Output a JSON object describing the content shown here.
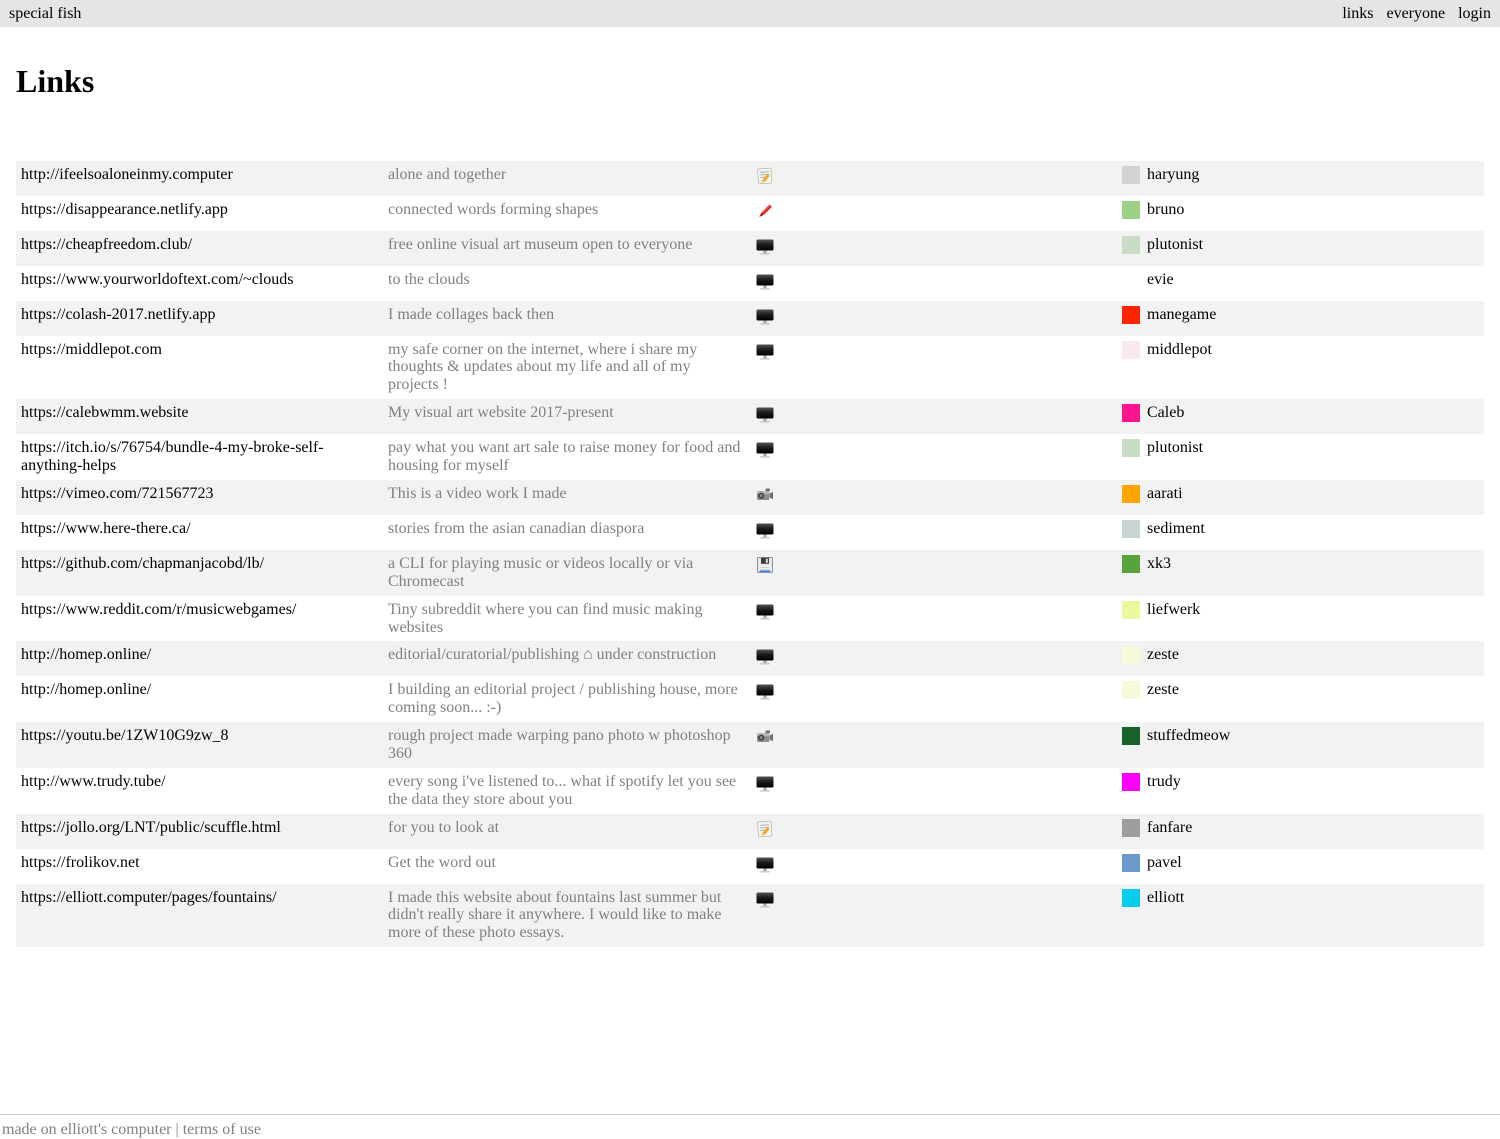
{
  "topbar": {
    "brand": "special fish",
    "nav": [
      {
        "label": "links"
      },
      {
        "label": "everyone"
      },
      {
        "label": "login"
      }
    ]
  },
  "page": {
    "title": "Links"
  },
  "links": {
    "rows": [
      {
        "url": "http://ifeelsoaloneinmy.computer",
        "description": "alone and together",
        "icon": "memo-icon",
        "color": "#d3d3d3",
        "user": "haryung"
      },
      {
        "url": "https://disappearance.netlify.app",
        "description": "connected words forming shapes",
        "icon": "crayon-icon",
        "color": "#9ad184",
        "user": "bruno"
      },
      {
        "url": "https://cheapfreedom.club/",
        "description": "free online visual art museum open to everyone",
        "icon": "desktop-icon",
        "color": "#c9dcc4",
        "user": "plutonist"
      },
      {
        "url": "https://www.yourworldoftext.com/~clouds",
        "description": "to the clouds",
        "icon": "desktop-icon",
        "color": null,
        "user": "evie"
      },
      {
        "url": "https://colash-2017.netlify.app",
        "description": "I made collages back then",
        "icon": "desktop-icon",
        "color": "#ff2400",
        "user": "manegame"
      },
      {
        "url": "https://middlepot.com",
        "description": "my safe corner on the internet, where i share my thoughts & updates about my life and all of my projects !",
        "icon": "desktop-icon",
        "color": "#f9e9ec",
        "user": "middlepot"
      },
      {
        "url": "https://calebwmm.website",
        "description": "My visual art website 2017-present",
        "icon": "desktop-icon",
        "color": "#ff1490",
        "user": "Caleb"
      },
      {
        "url": "https://itch.io/s/76754/bundle-4-my-broke-self-anything-helps",
        "description": "pay what you want art sale to raise money for food and housing for myself",
        "icon": "desktop-icon",
        "color": "#c9dcc4",
        "user": "plutonist"
      },
      {
        "url": "https://vimeo.com/721567723",
        "description": "This is a video work I made",
        "icon": "camera-icon",
        "color": "#ffa502",
        "user": "aarati"
      },
      {
        "url": "https://www.here-there.ca/",
        "description": "stories from the asian canadian diaspora",
        "icon": "desktop-icon",
        "color": "#c8d3d5",
        "user": "sediment"
      },
      {
        "url": "https://github.com/chapmanjacobd/lb/",
        "description": "a CLI for playing music or videos locally or via Chromecast",
        "icon": "floppy-icon",
        "color": "#57a33e",
        "user": "xk3"
      },
      {
        "url": "https://www.reddit.com/r/musicwebgames/",
        "description": "Tiny subreddit where you can find music making websites",
        "icon": "desktop-icon",
        "color": "#eef79e",
        "user": "liefwerk"
      },
      {
        "url": "http://homep.online/",
        "description": "editorial/curatorial/publishing ⌂ under construction",
        "icon": "desktop-icon",
        "color": "#f8f8da",
        "user": "zeste"
      },
      {
        "url": "http://homep.online/",
        "description": "I building an editorial project / publishing house, more coming soon... :-)",
        "icon": "desktop-icon",
        "color": "#f8f8da",
        "user": "zeste"
      },
      {
        "url": "https://youtu.be/1ZW10G9zw_8",
        "description": "rough project made warping pano photo w photoshop 360",
        "icon": "camera-icon",
        "color": "#176327",
        "user": "stuffedmeow"
      },
      {
        "url": "http://www.trudy.tube/",
        "description": "every song i've listened to... what if spotify let you see the data they store about you",
        "icon": "desktop-icon",
        "color": "#ff00ff",
        "user": "trudy"
      },
      {
        "url": "https://jollo.org/LNT/public/scuffle.html",
        "description": "for you to look at",
        "icon": "memo-icon",
        "color": "#9e9e9e",
        "user": "fanfare"
      },
      {
        "url": "https://frolikov.net",
        "description": "Get the word out",
        "icon": "desktop-icon",
        "color": "#6a9aca",
        "user": "pavel"
      },
      {
        "url": "https://elliott.computer/pages/fountains/",
        "description": "I made this website about fountains last summer but didn't really share it anywhere. I would like to make more of these photo essays.",
        "icon": "desktop-icon",
        "color": "#06cdee",
        "user": "elliott"
      }
    ]
  },
  "footer": {
    "credit": "made on elliott's computer",
    "separator": " | ",
    "terms": "terms of use"
  },
  "colors": {
    "topbar_bg": "#e5e5e5",
    "row_alt_bg": "#f2f2f2",
    "description_text": "#808080",
    "footer_text": "#808080"
  }
}
